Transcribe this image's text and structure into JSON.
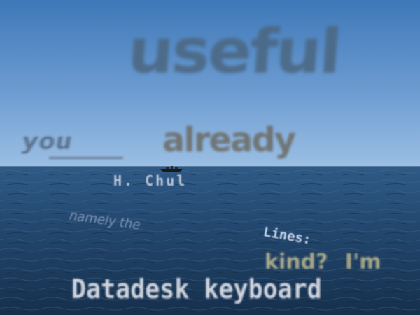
{
  "scene": {
    "sky_colors": [
      "#3e78b8",
      "#6d9cd1",
      "#9bbfe4"
    ],
    "sea_colors": [
      "#244a72",
      "#1c3a5c",
      "#16304c"
    ],
    "boat_color": "#1a1a1a"
  },
  "overlay_text": {
    "word1": "useful",
    "word2": "you",
    "word3": "already",
    "word4": "H. Chul",
    "word5": "namely the",
    "word6": "Lines:",
    "word7": "kind? I'm",
    "word8": "Datadesk keyboard"
  }
}
